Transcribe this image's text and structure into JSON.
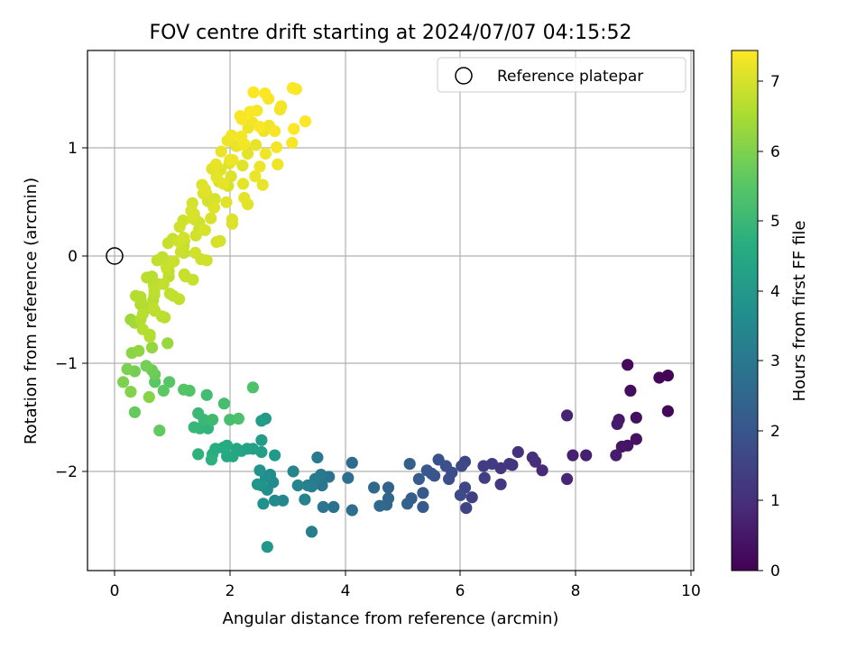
{
  "chart_data": {
    "type": "scatter",
    "title": "FOV centre drift starting at 2024/07/07 04:15:52",
    "xlabel": "Angular distance from reference (arcmin)",
    "ylabel": "Rotation from reference (arcmin)",
    "xlim": [
      -0.48,
      10.05
    ],
    "ylim": [
      -2.92,
      1.9
    ],
    "xticks": [
      "0",
      "2",
      "4",
      "6",
      "8",
      "10"
    ],
    "yticks": [
      "−2",
      "−1",
      "0",
      "1"
    ],
    "grid": true,
    "legend": {
      "label": "Reference platepar",
      "placement": "top-right"
    },
    "reference_point": {
      "x": 0,
      "y": 0
    },
    "colorbar": {
      "label": "Hours from first FF file",
      "range": [
        0,
        7.45
      ],
      "ticks": [
        "0",
        "1",
        "2",
        "3",
        "4",
        "5",
        "6",
        "7"
      ],
      "colormap": "viridis"
    },
    "points": [
      [
        9.6,
        -1.11,
        0.05
      ],
      [
        9.45,
        -1.13,
        0.1
      ],
      [
        9.6,
        -1.44,
        0.15
      ],
      [
        8.9,
        -1.01,
        0.2
      ],
      [
        8.95,
        -1.25,
        0.25
      ],
      [
        9.05,
        -1.5,
        0.3
      ],
      [
        9.05,
        -1.7,
        0.35
      ],
      [
        8.9,
        -1.76,
        0.4
      ],
      [
        8.8,
        -1.77,
        0.45
      ],
      [
        8.75,
        -1.52,
        0.5
      ],
      [
        8.72,
        -1.56,
        0.55
      ],
      [
        8.7,
        -1.85,
        0.6
      ],
      [
        8.18,
        -1.85,
        0.65
      ],
      [
        7.95,
        -1.85,
        0.7
      ],
      [
        7.85,
        -1.48,
        0.75
      ],
      [
        7.85,
        -2.07,
        0.8
      ],
      [
        7.42,
        -1.99,
        0.9
      ],
      [
        7.3,
        -1.91,
        0.95
      ],
      [
        7.25,
        -1.87,
        1.0
      ],
      [
        7.0,
        -1.82,
        1.05
      ],
      [
        6.9,
        -1.94,
        1.1
      ],
      [
        6.85,
        -1.93,
        1.15
      ],
      [
        6.7,
        -1.97,
        1.2
      ],
      [
        6.7,
        -2.12,
        1.25
      ],
      [
        6.55,
        -1.93,
        1.3
      ],
      [
        6.4,
        -1.95,
        1.35
      ],
      [
        6.42,
        -2.06,
        1.4
      ],
      [
        6.2,
        -2.24,
        1.45
      ],
      [
        6.1,
        -2.34,
        1.5
      ],
      [
        6.08,
        -2.15,
        1.55
      ],
      [
        6.08,
        -1.91,
        1.6
      ],
      [
        6.02,
        -1.95,
        1.65
      ],
      [
        6.0,
        -2.22,
        1.7
      ],
      [
        5.85,
        -2.01,
        1.75
      ],
      [
        5.8,
        -2.07,
        1.8
      ],
      [
        5.75,
        -1.95,
        1.85
      ],
      [
        5.62,
        -1.89,
        1.9
      ],
      [
        5.55,
        -2.04,
        1.95
      ],
      [
        5.5,
        -2.02,
        2.0
      ],
      [
        5.42,
        -1.99,
        2.05
      ],
      [
        5.35,
        -2.2,
        2.1
      ],
      [
        5.35,
        -2.33,
        2.15
      ],
      [
        5.28,
        -2.07,
        2.2
      ],
      [
        5.15,
        -2.25,
        2.25
      ],
      [
        5.12,
        -1.93,
        2.3
      ],
      [
        5.08,
        -2.3,
        2.35
      ],
      [
        4.75,
        -2.15,
        2.4
      ],
      [
        4.75,
        -2.25,
        2.45
      ],
      [
        4.72,
        -2.31,
        2.5
      ],
      [
        4.6,
        -2.32,
        2.55
      ],
      [
        4.5,
        -2.15,
        2.6
      ],
      [
        4.12,
        -1.92,
        2.65
      ],
      [
        4.12,
        -2.36,
        2.7
      ],
      [
        4.05,
        -2.06,
        2.75
      ],
      [
        3.8,
        -2.33,
        2.8
      ],
      [
        3.72,
        -2.05,
        2.85
      ],
      [
        3.62,
        -2.33,
        2.9
      ],
      [
        3.6,
        -2.13,
        2.95
      ],
      [
        3.58,
        -2.03,
        3.0
      ],
      [
        3.52,
        -1.87,
        3.05
      ],
      [
        3.48,
        -2.07,
        3.1
      ],
      [
        3.42,
        -2.14,
        3.15
      ],
      [
        3.42,
        -2.56,
        3.2
      ],
      [
        3.35,
        -2.13,
        3.25
      ],
      [
        3.3,
        -2.26,
        3.3
      ],
      [
        3.18,
        -2.13,
        3.35
      ],
      [
        3.1,
        -2.0,
        3.4
      ],
      [
        2.92,
        -2.27,
        3.45
      ],
      [
        2.78,
        -2.27,
        3.5
      ],
      [
        2.75,
        -2.1,
        3.55
      ],
      [
        2.7,
        -2.03,
        3.6
      ],
      [
        2.65,
        -2.17,
        3.65
      ],
      [
        2.62,
        -2.05,
        3.7
      ],
      [
        2.58,
        -2.3,
        3.75
      ],
      [
        2.55,
        -2.13,
        3.8
      ],
      [
        2.52,
        -1.99,
        3.85
      ],
      [
        2.48,
        -2.12,
        3.9
      ],
      [
        2.65,
        -2.7,
        3.95
      ],
      [
        2.78,
        -1.85,
        4.0
      ],
      [
        2.62,
        -1.51,
        4.05
      ],
      [
        2.55,
        -1.53,
        4.1
      ],
      [
        2.55,
        -1.71,
        4.15
      ],
      [
        2.55,
        -1.82,
        4.2
      ],
      [
        2.4,
        -1.79,
        4.25
      ],
      [
        2.3,
        -1.79,
        4.3
      ],
      [
        2.2,
        -1.81,
        4.35
      ],
      [
        2.12,
        -1.79,
        4.4
      ],
      [
        2.05,
        -1.86,
        4.45
      ],
      [
        1.95,
        -1.86,
        4.5
      ],
      [
        1.95,
        -1.76,
        4.55
      ],
      [
        1.88,
        -1.78,
        4.6
      ],
      [
        1.75,
        -1.79,
        4.65
      ],
      [
        1.7,
        -1.84,
        4.7
      ],
      [
        1.68,
        -1.89,
        4.75
      ],
      [
        1.45,
        -1.84,
        4.8
      ],
      [
        1.62,
        -1.6,
        4.85
      ],
      [
        1.48,
        -1.6,
        4.9
      ],
      [
        1.38,
        -1.59,
        4.95
      ],
      [
        1.55,
        -1.52,
        5.0
      ],
      [
        1.45,
        -1.46,
        5.05
      ],
      [
        1.7,
        -1.52,
        5.1
      ],
      [
        1.6,
        -1.29,
        5.15
      ],
      [
        1.9,
        -1.37,
        5.2
      ],
      [
        2.0,
        -1.52,
        5.25
      ],
      [
        2.15,
        -1.51,
        5.3
      ],
      [
        2.4,
        -1.22,
        5.35
      ],
      [
        1.3,
        -1.25,
        5.4
      ],
      [
        1.2,
        -1.24,
        5.45
      ],
      [
        0.95,
        -1.17,
        5.5
      ],
      [
        0.7,
        -1.17,
        5.55
      ],
      [
        0.85,
        -1.25,
        5.6
      ],
      [
        0.78,
        -1.62,
        5.65
      ],
      [
        0.35,
        -1.45,
        5.7
      ],
      [
        0.7,
        -1.1,
        5.75
      ],
      [
        0.65,
        -1.06,
        5.8
      ],
      [
        0.55,
        -1.02,
        5.85
      ],
      [
        0.35,
        -1.07,
        5.9
      ],
      [
        0.22,
        -1.05,
        5.95
      ],
      [
        0.15,
        -1.17,
        6.0
      ],
      [
        0.28,
        -1.26,
        6.05
      ],
      [
        0.6,
        -1.31,
        6.1
      ],
      [
        0.3,
        -0.9,
        6.15
      ],
      [
        0.42,
        -0.88,
        6.2
      ],
      [
        0.65,
        -0.85,
        6.25
      ],
      [
        0.92,
        -0.81,
        6.3
      ],
      [
        0.28,
        -0.59,
        6.35
      ],
      [
        0.35,
        -0.62,
        6.4
      ],
      [
        0.45,
        -0.59,
        6.5
      ],
      [
        0.45,
        -0.45,
        6.55
      ],
      [
        0.6,
        -0.48,
        6.6
      ]
    ]
  }
}
